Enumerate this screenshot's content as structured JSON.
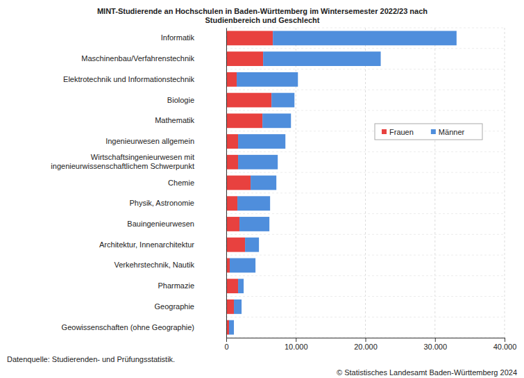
{
  "chart_data": {
    "type": "bar",
    "orientation": "horizontal",
    "stacked": true,
    "title": "MINT-Studierende an Hochschulen in Baden-Württemberg im Wintersemester 2022/23 nach\nStudienbereich und Geschlecht",
    "categories": [
      "Informatik",
      "Maschinenbau/Verfahrenstechnik",
      "Elektrotechnik und Informationstechnik",
      "Biologie",
      "Mathematik",
      "Ingenieurwesen allgemein",
      "Wirtschaftsingenieurwesen mit\ningenieurwissenschaftlichem Schwerpunkt",
      "Chemie",
      "Physik, Astronomie",
      "Bauingenieurwesen",
      "Architektur, Innenarchitektur",
      "Verkehrstechnik, Nautik",
      "Pharmazie",
      "Geographie",
      "Geowissenschaften (ohne Geographie)"
    ],
    "series": [
      {
        "name": "Frauen",
        "color": "#e8413f",
        "values": [
          6700,
          5300,
          1500,
          6500,
          5200,
          1700,
          1700,
          3500,
          1600,
          1900,
          2700,
          500,
          1700,
          1100,
          400
        ]
      },
      {
        "name": "Männer",
        "color": "#4f8edc",
        "values": [
          26400,
          16900,
          8800,
          3300,
          4100,
          6800,
          5700,
          3700,
          4700,
          4300,
          2000,
          3700,
          800,
          1100,
          700
        ]
      }
    ],
    "xlim": [
      0,
      40000
    ],
    "xticks": [
      0,
      {
        "value": 10000,
        "label": "10.000"
      },
      {
        "value": 20000,
        "label": "20.000"
      },
      {
        "value": 30000,
        "label": "30.000"
      },
      {
        "value": 40000,
        "label": "40.000"
      }
    ],
    "grid": true,
    "legend": "right",
    "annotations": [
      "Datenquelle: Studierenden- und Prüfungsstatistik.",
      "© Statistisches Landesamt Baden-Württemberg 2024"
    ]
  }
}
